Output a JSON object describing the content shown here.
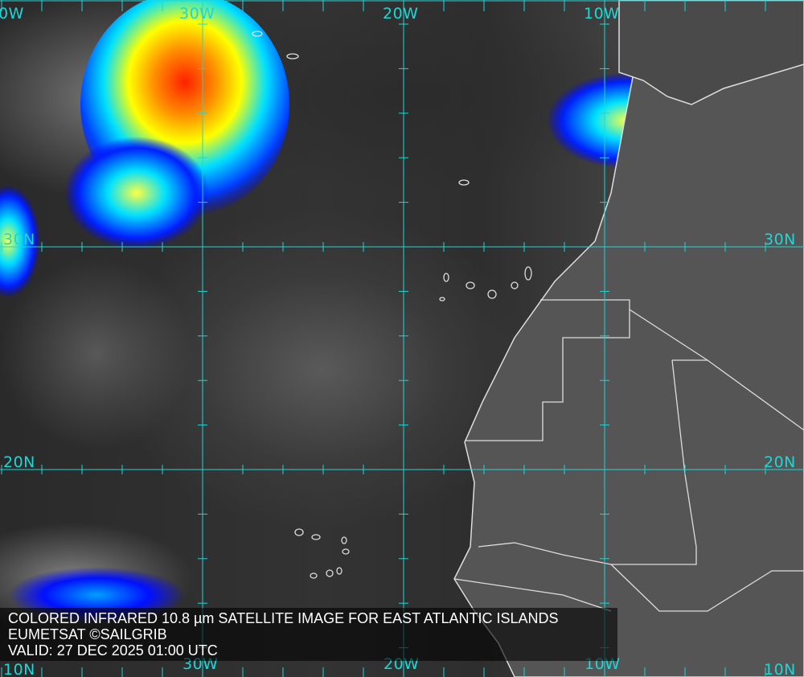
{
  "caption": {
    "title": "COLORED INFRARED 10.8 µm SATELLITE IMAGE FOR EAST ATLANTIC ISLANDS",
    "credit": "EUMETSAT ©SAILGRIB",
    "valid": "VALID:  27 DEC 2025 01:00 UTC"
  },
  "grid": {
    "longitude_labels_top": [
      "0W",
      "30W",
      "20W",
      "10W"
    ],
    "longitude_labels_bottom": [
      "30W",
      "20W",
      "10W"
    ],
    "latitude_labels_left": [
      "30N",
      "20N",
      "10N"
    ],
    "latitude_labels_right": [
      "30N",
      "20N",
      "10N"
    ],
    "line_color": "#1fd6d6"
  },
  "colors": {
    "cold_cloud_scale": [
      "#0000ff",
      "#00c8ff",
      "#00ffc0",
      "#ffff00",
      "#ff8000",
      "#ff0000"
    ],
    "coastline": "#e0e0e0"
  }
}
